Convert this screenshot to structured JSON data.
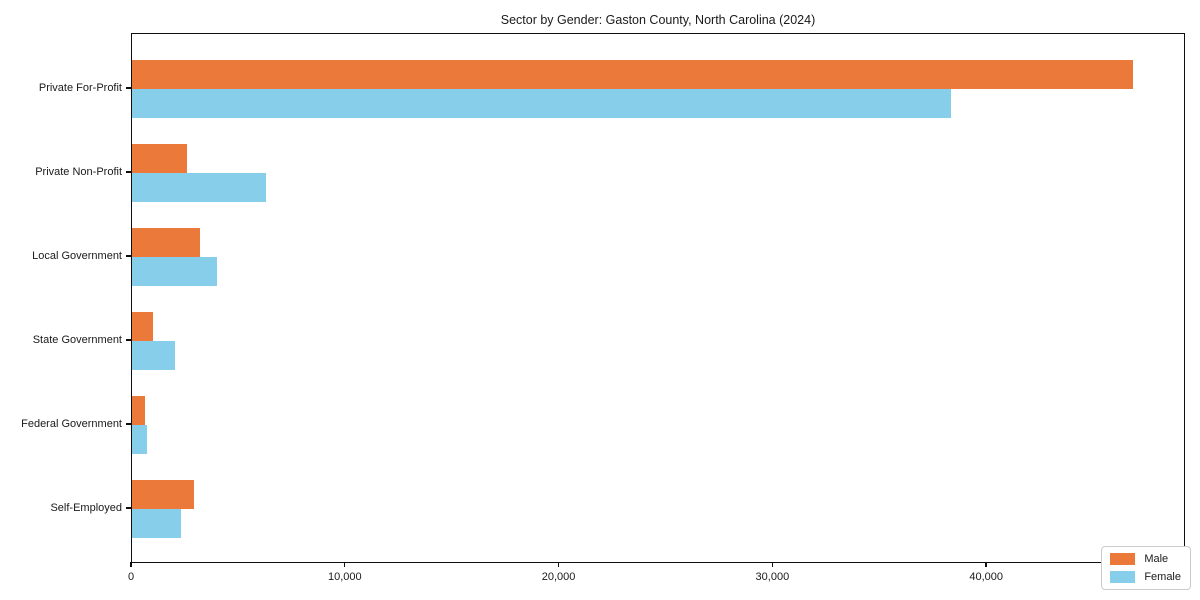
{
  "chart_data": {
    "type": "bar",
    "orientation": "horizontal",
    "title": "Sector by Gender: Gaston County, North Carolina (2024)",
    "xlabel": "",
    "ylabel": "",
    "grid": false,
    "legend_position": "lower right",
    "xlim": [
      0,
      49300
    ],
    "categories": [
      "Private For-Profit",
      "Private Non-Profit",
      "Local Government",
      "State Government",
      "Federal Government",
      "Self-Employed"
    ],
    "series": [
      {
        "name": "Male",
        "color": "#eb7a3a",
        "values": [
          46900,
          2600,
          3200,
          1000,
          600,
          2900
        ]
      },
      {
        "name": "Female",
        "color": "#87ceeb",
        "values": [
          38400,
          6300,
          4000,
          2000,
          700,
          2300
        ]
      }
    ],
    "x_ticks": [
      {
        "value": 0,
        "label": "0"
      },
      {
        "value": 10000,
        "label": "10,000"
      },
      {
        "value": 20000,
        "label": "20,000"
      },
      {
        "value": 30000,
        "label": "30,000"
      },
      {
        "value": 40000,
        "label": "40,000"
      }
    ]
  },
  "colors": {
    "male": "#eb7a3a",
    "female": "#87ceeb",
    "spine": "#0f0f0f",
    "legend_border": "#cccccc",
    "text": "#1a1a1a"
  }
}
